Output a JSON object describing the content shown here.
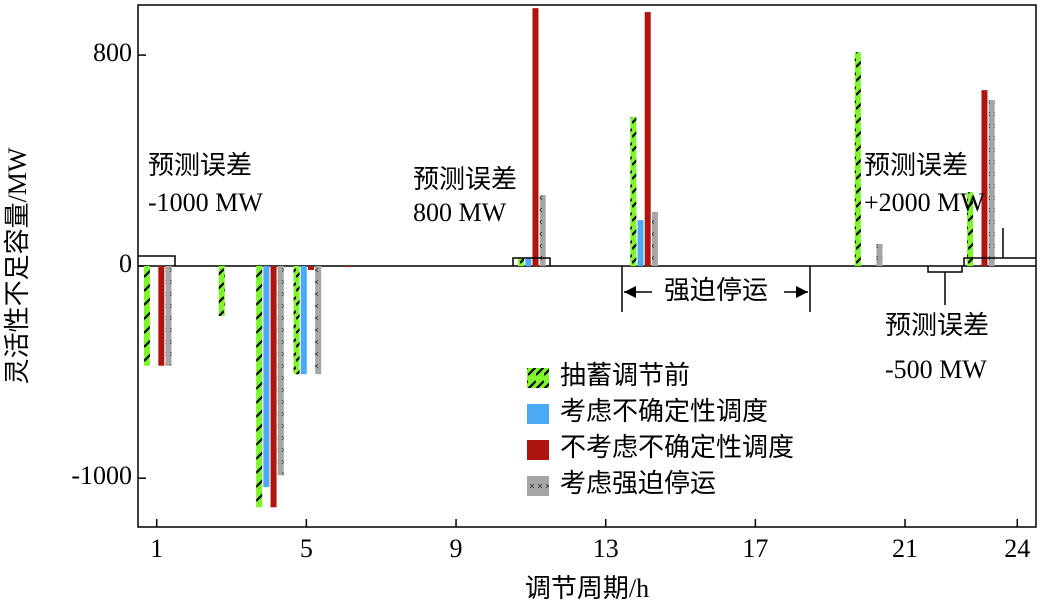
{
  "chart_data": {
    "type": "bar",
    "y_label": "灵活性不足容量/MW",
    "x_label": "调节周期/h",
    "x": [
      1,
      3,
      4,
      5,
      6,
      11,
      14,
      20,
      23
    ],
    "series": [
      {
        "name": "抽蓄调节前",
        "color": "#7ef52a",
        "pattern": "hatch",
        "values": [
          -470,
          -236,
          -1137,
          -510,
          null,
          30,
          565,
          811,
          280
        ]
      },
      {
        "name": "考虑不确定性调度",
        "color": "#4aaaf5",
        "pattern": "solid",
        "values": [
          null,
          null,
          -1042,
          -510,
          null,
          30,
          174,
          null,
          null
        ]
      },
      {
        "name": "不考虑不确定性调度",
        "color": "#b0140f",
        "pattern": "solid",
        "values": [
          -470,
          null,
          -1137,
          -19,
          -5,
          978,
          963,
          null,
          667
        ]
      },
      {
        "name": "考虑强迫停运",
        "color": "#a6a6a6",
        "pattern": "cross",
        "values": [
          -470,
          null,
          -986,
          -510,
          null,
          269,
          205,
          83,
          629
        ]
      }
    ],
    "xlim": [
      0.5,
      24.5
    ],
    "xticks": [
      1,
      5,
      9,
      13,
      17,
      21,
      24
    ],
    "ylim": [
      -1230,
      990
    ],
    "yticks": [
      800,
      0,
      -1000
    ],
    "annotations": [
      {
        "lines": [
          "预测误差",
          "-1000 MW"
        ]
      },
      {
        "lines": [
          "预测误差",
          "800 MW"
        ]
      },
      {
        "lines": [
          "预测误差",
          "+2000 MW"
        ]
      },
      {
        "lines": [
          "预测误差",
          "-500 MW"
        ]
      }
    ],
    "outage_label": "强迫停运",
    "legend": "center"
  }
}
